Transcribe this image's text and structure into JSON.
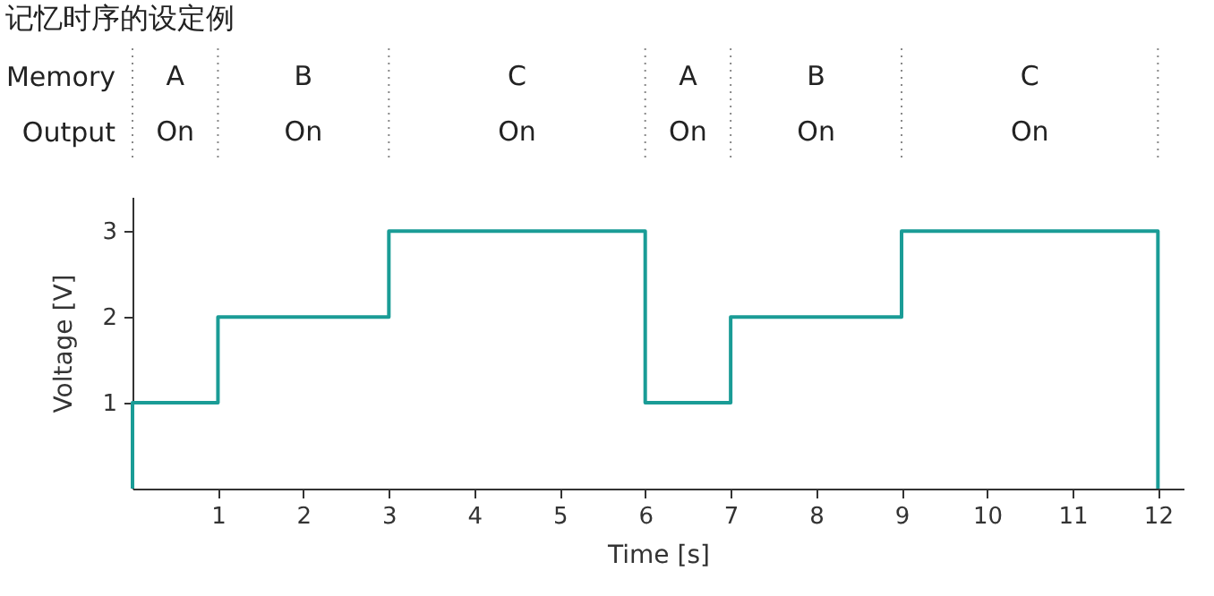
{
  "chart_data": {
    "type": "step",
    "title": "记忆时序的设定例",
    "xlabel": "Time [s]",
    "ylabel": "Voltage [V]",
    "x": [
      0,
      0,
      1,
      3,
      6,
      7,
      9,
      12,
      12
    ],
    "series": [
      {
        "color": "#1a9c96",
        "values": [
          0,
          1,
          2,
          3,
          1,
          2,
          3,
          3,
          0
        ]
      }
    ],
    "xlim": [
      0,
      12.3
    ],
    "xticks": [
      1,
      2,
      3,
      4,
      5,
      6,
      7,
      8,
      9,
      10,
      11,
      12
    ],
    "ylim": [
      0,
      3.4
    ],
    "yticks": [
      1,
      2,
      3
    ],
    "grid": false,
    "annotations": [
      "Memory",
      "Output",
      "A",
      "B",
      "C",
      "A",
      "B",
      "C",
      "On",
      "On",
      "On",
      "On",
      "On",
      "On"
    ]
  }
}
